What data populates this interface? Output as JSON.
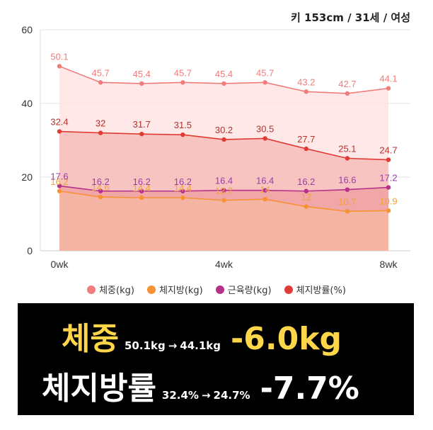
{
  "header": {
    "info": "키 153cm / 31세 / 여성"
  },
  "chart_data": {
    "type": "area",
    "x": [
      "0wk",
      "",
      "",
      "",
      "4wk",
      "",
      "",
      "",
      "8wk"
    ],
    "x_ticks": [
      "0wk",
      "4wk",
      "8wk"
    ],
    "y_ticks": [
      "0",
      "20",
      "40",
      "60"
    ],
    "ylim": [
      0,
      60
    ],
    "grid": true,
    "legend_position": "bottom",
    "series": [
      {
        "name": "체중(kg)",
        "color": "#f07c7c",
        "label_color": "#f07c7c",
        "fill": "#fde2e0",
        "values": [
          50.1,
          45.7,
          45.4,
          45.7,
          45.4,
          45.7,
          43.2,
          42.7,
          44.1
        ],
        "labels": [
          "50.1",
          "45.7",
          "45.4",
          "45.7",
          "45.4",
          "45.7",
          "43.2",
          "42.7",
          "44.1"
        ]
      },
      {
        "name": "체지방(kg)",
        "color": "#f79232",
        "label_color": "#f2a23a",
        "fill": "#f4b9a4",
        "values": [
          16.2,
          14.6,
          14.4,
          14.4,
          13.7,
          14,
          12,
          10.7,
          10.9
        ],
        "labels": [
          "16.2",
          "14.6",
          "14.4",
          "14.4",
          "13.7",
          "14",
          "12",
          "10.7",
          "10.9"
        ]
      },
      {
        "name": "근육량(kg)",
        "color": "#b5318a",
        "label_color": "#9b3da6",
        "fill": "#ef9c9e",
        "values": [
          17.6,
          16.2,
          16.2,
          16.2,
          16.4,
          16.4,
          16.2,
          16.6,
          17.2
        ],
        "labels": [
          "17.6",
          "16.2",
          "16.2",
          "16.2",
          "16.4",
          "16.4",
          "16.2",
          "16.6",
          "17.2"
        ]
      },
      {
        "name": "체지방률(%)",
        "color": "#e03b34",
        "label_color": "#b8302b",
        "fill": "#f6b7b4",
        "values": [
          32.4,
          32,
          31.7,
          31.5,
          30.2,
          30.5,
          27.7,
          25.1,
          24.7
        ],
        "labels": [
          "32.4",
          "32",
          "31.7",
          "31.5",
          "30.2",
          "30.5",
          "27.7",
          "25.1",
          "24.7"
        ]
      }
    ]
  },
  "legend": [
    {
      "label": "체중(kg)",
      "color": "#f07c7c"
    },
    {
      "label": "체지방(kg)",
      "color": "#f79232"
    },
    {
      "label": "근육량(kg)",
      "color": "#b5318a"
    },
    {
      "label": "체지방률(%)",
      "color": "#e03b34"
    }
  ],
  "summary": {
    "weight": {
      "label": "체중",
      "from": "50.1kg",
      "arrow": "→",
      "to": "44.1kg",
      "delta": "-6.0kg"
    },
    "fat_rate": {
      "label": "체지방률",
      "from": "32.4%",
      "arrow": "→",
      "to": "24.7%",
      "delta": "-7.7%"
    }
  }
}
